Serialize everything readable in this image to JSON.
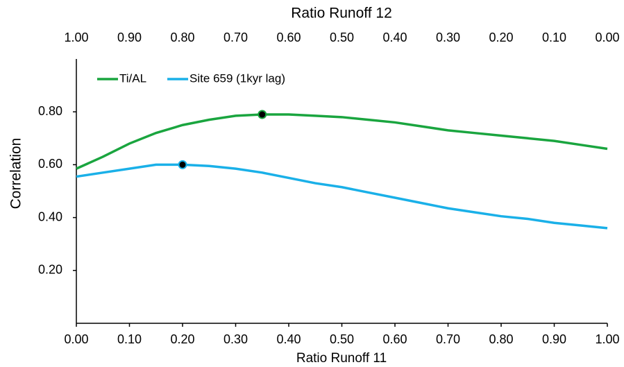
{
  "chart_data": {
    "type": "line",
    "ylabel": "Correlation",
    "xlabel": "Ratio Runoff 11",
    "x2label": "Ratio Runoff 12",
    "x": [
      0,
      0.05,
      0.1,
      0.15,
      0.2,
      0.25,
      0.3,
      0.35,
      0.4,
      0.45,
      0.5,
      0.55,
      0.6,
      0.65,
      0.7,
      0.75,
      0.8,
      0.85,
      0.9,
      0.95,
      1.0
    ],
    "series": [
      {
        "name": "Ti/AL",
        "color": "#1aa53f",
        "highlight": 7,
        "values": [
          0.585,
          0.63,
          0.68,
          0.72,
          0.75,
          0.77,
          0.785,
          0.79,
          0.79,
          0.785,
          0.78,
          0.77,
          0.76,
          0.745,
          0.73,
          0.72,
          0.71,
          0.7,
          0.69,
          0.675,
          0.66
        ]
      },
      {
        "name": "Site 659 (1kyr lag)",
        "color": "#1ab0e8",
        "highlight": 4,
        "values": [
          0.555,
          0.57,
          0.585,
          0.6,
          0.6,
          0.595,
          0.585,
          0.57,
          0.55,
          0.53,
          0.515,
          0.495,
          0.475,
          0.455,
          0.435,
          0.42,
          0.405,
          0.395,
          0.38,
          0.37,
          0.36
        ]
      }
    ],
    "xlim": [
      0,
      1
    ],
    "xticks": [
      {
        "value": 0,
        "label": "0.00"
      },
      {
        "value": 0.1,
        "label": "0.10"
      },
      {
        "value": 0.2,
        "label": "0.20"
      },
      {
        "value": 0.3,
        "label": "0.30"
      },
      {
        "value": 0.4,
        "label": "0.40"
      },
      {
        "value": 0.5,
        "label": "0.50"
      },
      {
        "value": 0.6,
        "label": "0.60"
      },
      {
        "value": 0.7,
        "label": "0.70"
      },
      {
        "value": 0.8,
        "label": "0.80"
      },
      {
        "value": 0.9,
        "label": "0.90"
      },
      {
        "value": 1,
        "label": "1.00"
      }
    ],
    "x2lim": [
      1,
      0
    ],
    "x2ticks": [
      {
        "value": 1,
        "label": "1.00"
      },
      {
        "value": 0.9,
        "label": "0.90"
      },
      {
        "value": 0.8,
        "label": "0.80"
      },
      {
        "value": 0.7,
        "label": "0.70"
      },
      {
        "value": 0.6,
        "label": "0.60"
      },
      {
        "value": 0.5,
        "label": "0.50"
      },
      {
        "value": 0.4,
        "label": "0.40"
      },
      {
        "value": 0.3,
        "label": "0.30"
      },
      {
        "value": 0.2,
        "label": "0.20"
      },
      {
        "value": 0.1,
        "label": "0.10"
      },
      {
        "value": 0,
        "label": "0.00"
      }
    ],
    "ylim": [
      0,
      1
    ],
    "yticks": [
      {
        "value": 0.2,
        "label": "0.20"
      },
      {
        "value": 0.4,
        "label": "0.40"
      },
      {
        "value": 0.6,
        "label": "0.60"
      },
      {
        "value": 0.8,
        "label": "0.80"
      }
    ],
    "grid": false,
    "legend": "top-left"
  }
}
